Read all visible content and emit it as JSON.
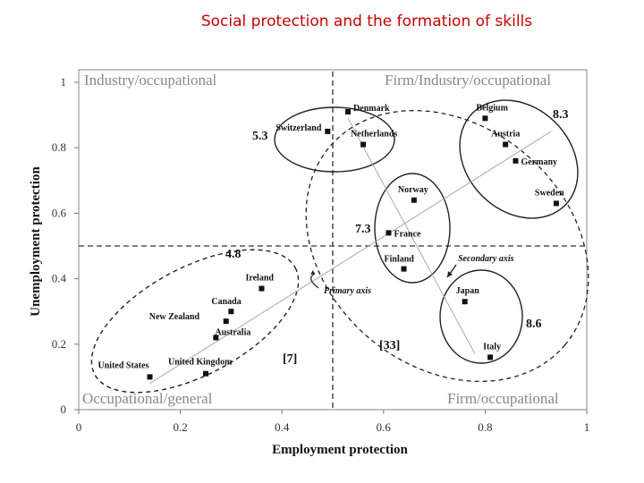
{
  "title": "Social protection and the formation of skills",
  "chart_data": {
    "type": "scatter",
    "xlabel": "Employment protection",
    "ylabel": "Unemployment protection",
    "xlim": [
      0,
      1
    ],
    "ylim": [
      0,
      1
    ],
    "xticks": [
      "0",
      "0.2",
      "0.4",
      "0.6",
      "0.8",
      "1"
    ],
    "yticks": [
      "0",
      "0.2",
      "0.4",
      "0.6",
      "0.8",
      "1"
    ],
    "grid": false,
    "points": [
      {
        "label": "United States",
        "x": 0.14,
        "y": 0.1
      },
      {
        "label": "United Kingdom",
        "x": 0.25,
        "y": 0.11
      },
      {
        "label": "Australia",
        "x": 0.27,
        "y": 0.22
      },
      {
        "label": "New Zealand",
        "x": 0.29,
        "y": 0.27
      },
      {
        "label": "Canada",
        "x": 0.3,
        "y": 0.3
      },
      {
        "label": "Ireland",
        "x": 0.36,
        "y": 0.37
      },
      {
        "label": "Switzerland",
        "x": 0.49,
        "y": 0.85
      },
      {
        "label": "Denmark",
        "x": 0.53,
        "y": 0.91
      },
      {
        "label": "Netherlands",
        "x": 0.56,
        "y": 0.81
      },
      {
        "label": "France",
        "x": 0.61,
        "y": 0.54
      },
      {
        "label": "Finland",
        "x": 0.64,
        "y": 0.43
      },
      {
        "label": "Norway",
        "x": 0.66,
        "y": 0.64
      },
      {
        "label": "Japan",
        "x": 0.76,
        "y": 0.33
      },
      {
        "label": "Belgium",
        "x": 0.8,
        "y": 0.89
      },
      {
        "label": "Italy",
        "x": 0.81,
        "y": 0.16
      },
      {
        "label": "Austria",
        "x": 0.84,
        "y": 0.81
      },
      {
        "label": "Germany",
        "x": 0.86,
        "y": 0.76
      },
      {
        "label": "Sweden",
        "x": 0.94,
        "y": 0.63
      }
    ],
    "quadrant_labels": [
      "Industry/occupational",
      "Firm/Industry/occupational",
      "Occupational/general",
      "Firm/occupational"
    ],
    "cluster_scores": [
      "5.3",
      "8.3",
      "7.3",
      "4.8",
      "8.6"
    ],
    "group_labels": [
      "[7]",
      "[33]"
    ],
    "annotations": [
      "Primary axis",
      "Secondary axis"
    ]
  }
}
